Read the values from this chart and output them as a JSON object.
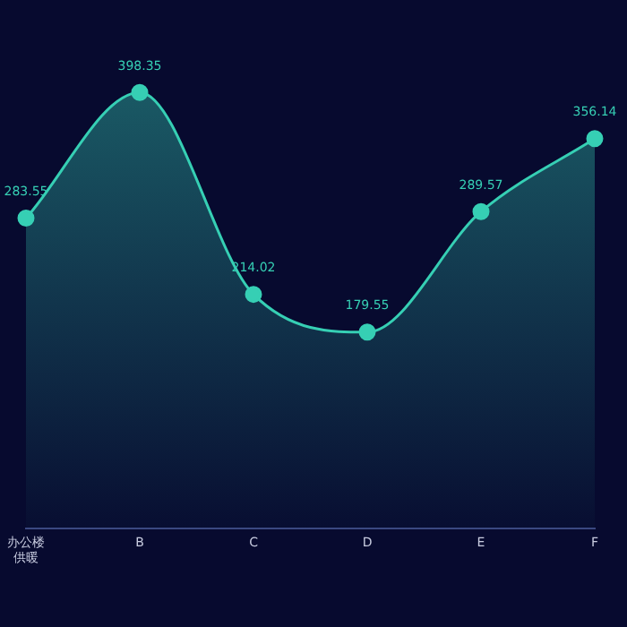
{
  "chart_data": {
    "type": "area",
    "categories": [
      "办公楼供暖",
      "B",
      "C",
      "D",
      "E",
      "F"
    ],
    "series": [
      {
        "color": "#36cfb4",
        "values": [
          283.55,
          398.35,
          214.02,
          179.55,
          289.57,
          356.14
        ]
      }
    ],
    "tick_labels": "x",
    "grid": false,
    "legend": false,
    "marker": "circle",
    "data_labels": true
  }
}
